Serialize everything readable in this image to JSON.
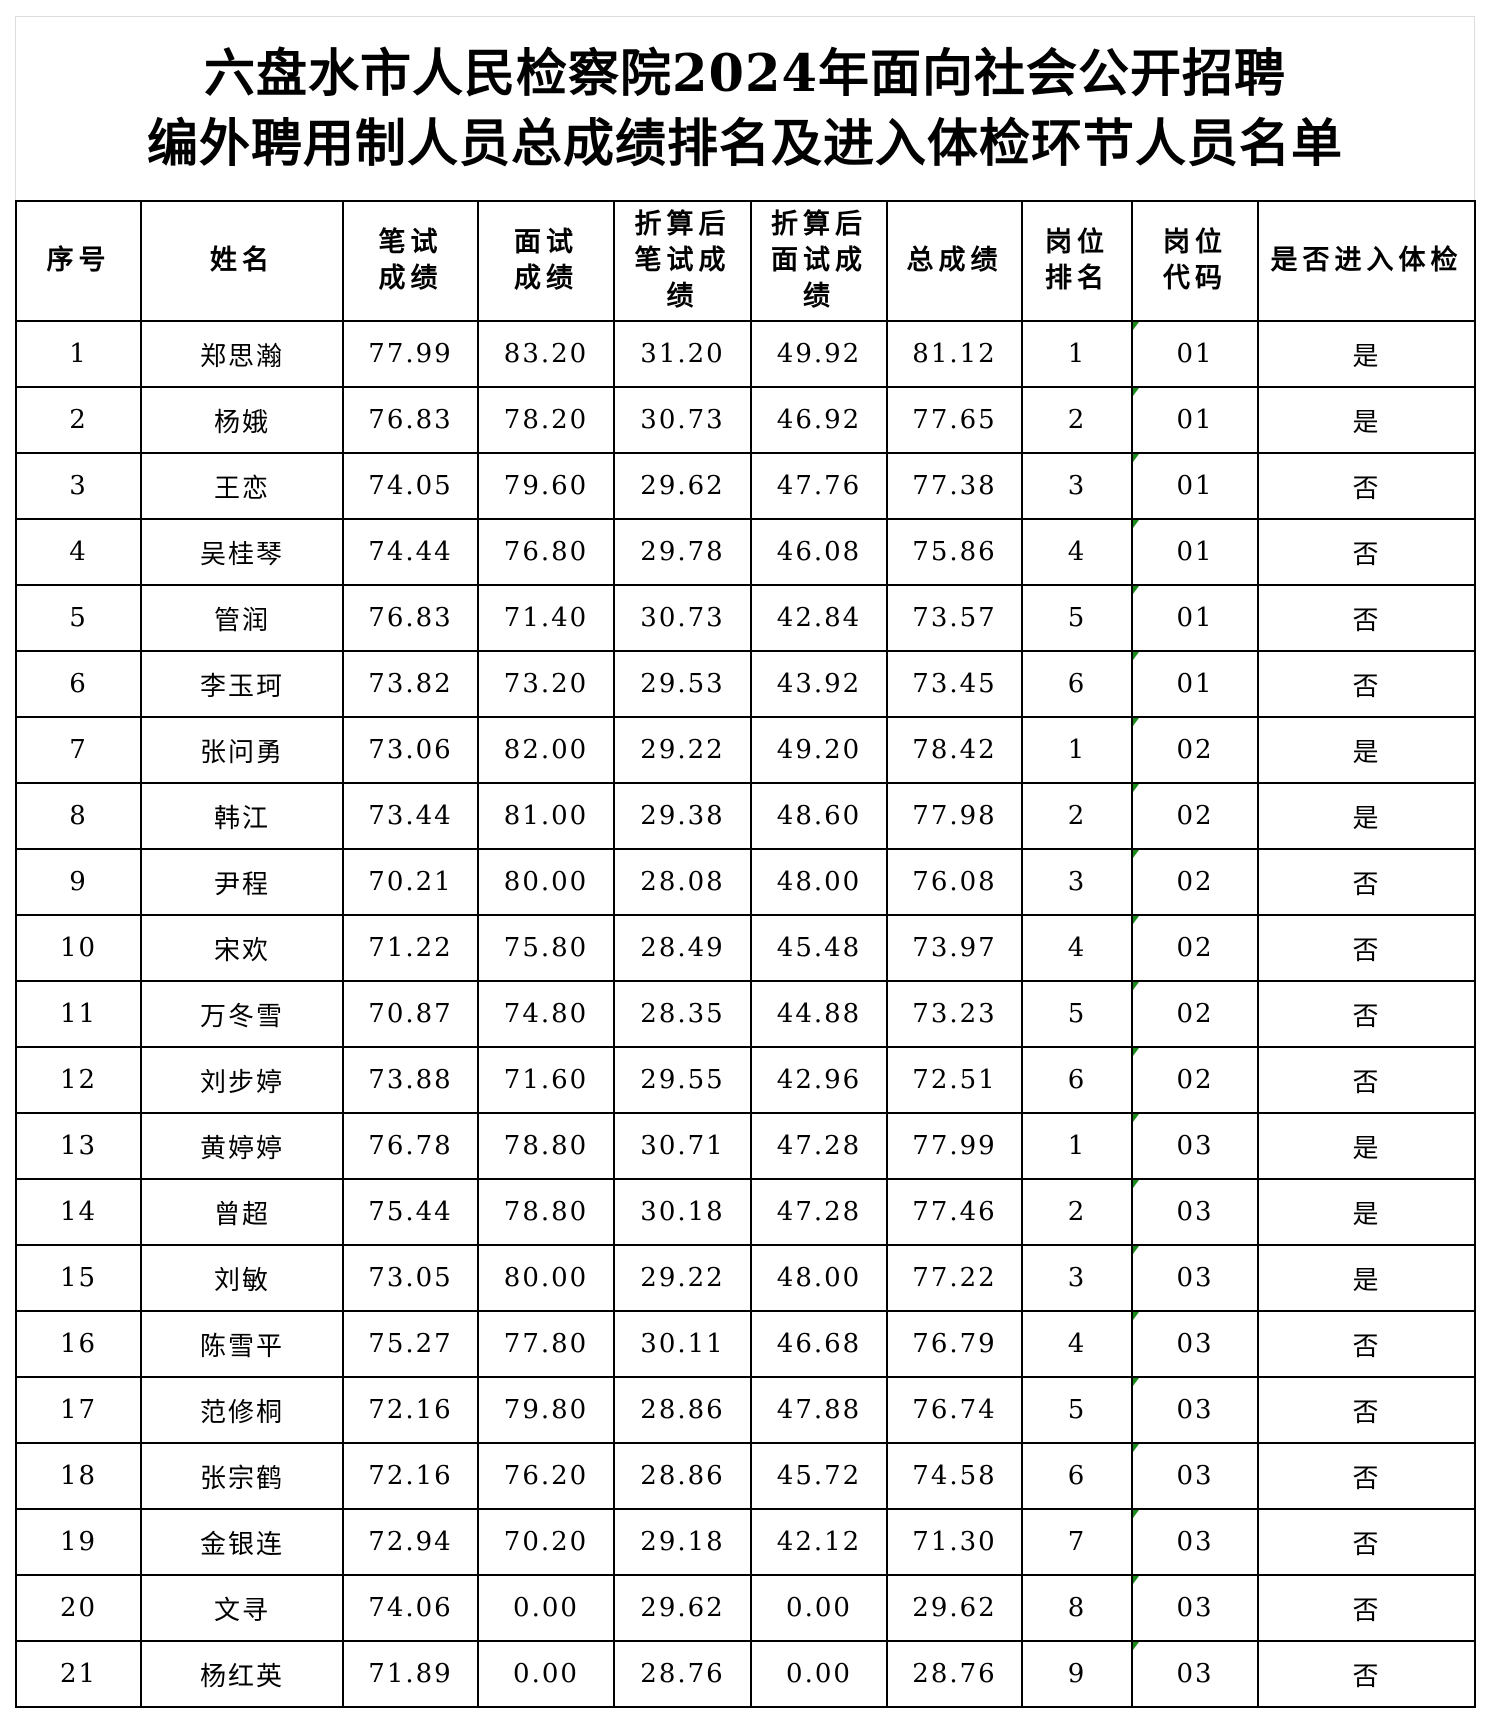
{
  "title": {
    "line1": "六盘水市人民检察院2024年面向社会公开招聘",
    "line2": "编外聘用制人员总成绩排名及进入体检环节人员名单"
  },
  "columns": [
    "序号",
    "姓名",
    "笔试\n成绩",
    "面试\n成绩",
    "折算后\n笔试成\n绩",
    "折算后\n面试成\n绩",
    "总成绩",
    "岗位\n排名",
    "岗位\n代码",
    "是否进入体检"
  ],
  "marker_color": "#1a8a1a",
  "rows": [
    [
      "1",
      "郑思瀚",
      "77.99",
      "83.20",
      "31.20",
      "49.92",
      "81.12",
      "1",
      "01",
      "是"
    ],
    [
      "2",
      "杨娥",
      "76.83",
      "78.20",
      "30.73",
      "46.92",
      "77.65",
      "2",
      "01",
      "是"
    ],
    [
      "3",
      "王恋",
      "74.05",
      "79.60",
      "29.62",
      "47.76",
      "77.38",
      "3",
      "01",
      "否"
    ],
    [
      "4",
      "吴桂琴",
      "74.44",
      "76.80",
      "29.78",
      "46.08",
      "75.86",
      "4",
      "01",
      "否"
    ],
    [
      "5",
      "管润",
      "76.83",
      "71.40",
      "30.73",
      "42.84",
      "73.57",
      "5",
      "01",
      "否"
    ],
    [
      "6",
      "李玉珂",
      "73.82",
      "73.20",
      "29.53",
      "43.92",
      "73.45",
      "6",
      "01",
      "否"
    ],
    [
      "7",
      "张问勇",
      "73.06",
      "82.00",
      "29.22",
      "49.20",
      "78.42",
      "1",
      "02",
      "是"
    ],
    [
      "8",
      "韩江",
      "73.44",
      "81.00",
      "29.38",
      "48.60",
      "77.98",
      "2",
      "02",
      "是"
    ],
    [
      "9",
      "尹程",
      "70.21",
      "80.00",
      "28.08",
      "48.00",
      "76.08",
      "3",
      "02",
      "否"
    ],
    [
      "10",
      "宋欢",
      "71.22",
      "75.80",
      "28.49",
      "45.48",
      "73.97",
      "4",
      "02",
      "否"
    ],
    [
      "11",
      "万冬雪",
      "70.87",
      "74.80",
      "28.35",
      "44.88",
      "73.23",
      "5",
      "02",
      "否"
    ],
    [
      "12",
      "刘步婷",
      "73.88",
      "71.60",
      "29.55",
      "42.96",
      "72.51",
      "6",
      "02",
      "否"
    ],
    [
      "13",
      "黄婷婷",
      "76.78",
      "78.80",
      "30.71",
      "47.28",
      "77.99",
      "1",
      "03",
      "是"
    ],
    [
      "14",
      "曾超",
      "75.44",
      "78.80",
      "30.18",
      "47.28",
      "77.46",
      "2",
      "03",
      "是"
    ],
    [
      "15",
      "刘敏",
      "73.05",
      "80.00",
      "29.22",
      "48.00",
      "77.22",
      "3",
      "03",
      "是"
    ],
    [
      "16",
      "陈雪平",
      "75.27",
      "77.80",
      "30.11",
      "46.68",
      "76.79",
      "4",
      "03",
      "否"
    ],
    [
      "17",
      "范修桐",
      "72.16",
      "79.80",
      "28.86",
      "47.88",
      "76.74",
      "5",
      "03",
      "否"
    ],
    [
      "18",
      "张宗鹤",
      "72.16",
      "76.20",
      "28.86",
      "45.72",
      "74.58",
      "6",
      "03",
      "否"
    ],
    [
      "19",
      "金银连",
      "72.94",
      "70.20",
      "29.18",
      "42.12",
      "71.30",
      "7",
      "03",
      "否"
    ],
    [
      "20",
      "文寻",
      "74.06",
      "0.00",
      "29.62",
      "0.00",
      "29.62",
      "8",
      "03",
      "否"
    ],
    [
      "21",
      "杨红英",
      "71.89",
      "0.00",
      "28.76",
      "0.00",
      "28.76",
      "9",
      "03",
      "否"
    ]
  ]
}
